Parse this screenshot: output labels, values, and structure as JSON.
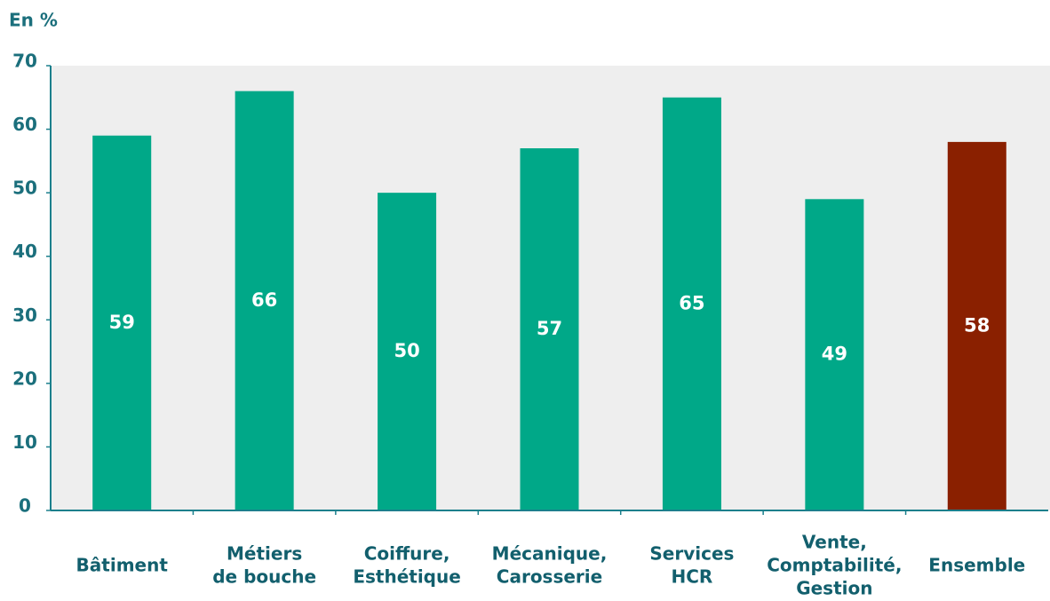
{
  "chart_data": {
    "type": "bar",
    "axis_title": "En %",
    "categories": [
      [
        "Bâtiment"
      ],
      [
        "Métiers",
        "de bouche"
      ],
      [
        "Coiffure,",
        "Esthétique"
      ],
      [
        "Mécanique,",
        "Carosserie"
      ],
      [
        "Services",
        "HCR"
      ],
      [
        "Vente,",
        "Comptabilité,",
        "Gestion"
      ],
      [
        "Ensemble"
      ]
    ],
    "values": [
      59,
      66,
      50,
      57,
      65,
      49,
      58
    ],
    "colors": [
      "#00a888",
      "#00a888",
      "#00a888",
      "#00a888",
      "#00a888",
      "#00a888",
      "#8a2000"
    ],
    "ylim": [
      0,
      70
    ],
    "yticks": [
      0,
      10,
      20,
      30,
      40,
      50,
      60,
      70
    ]
  }
}
